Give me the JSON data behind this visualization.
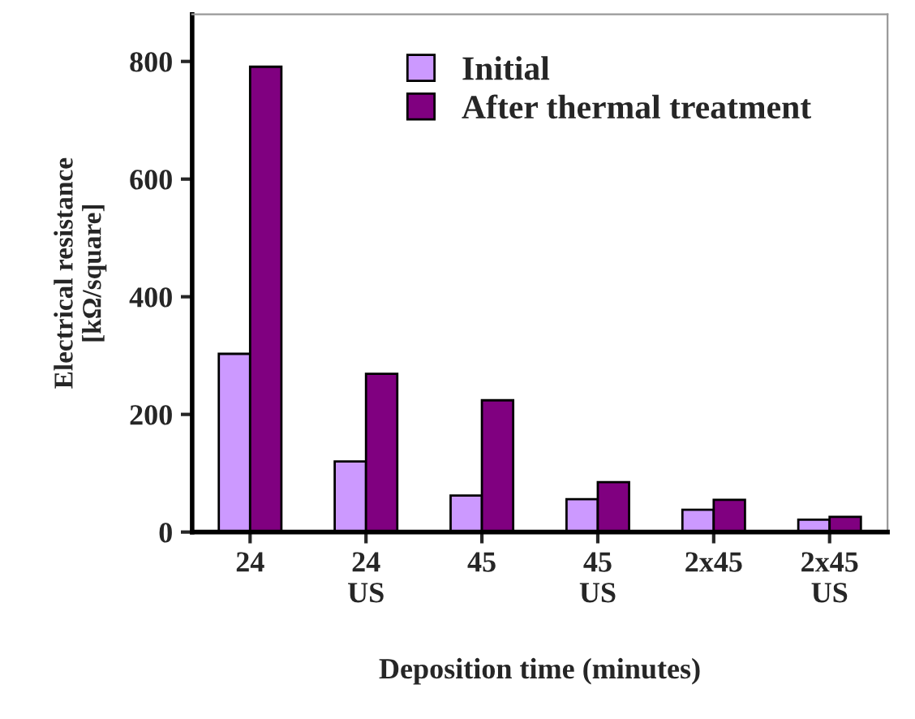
{
  "chart_data": {
    "type": "bar",
    "xlabel": "Deposition time (minutes)",
    "ylabel": "Electrical resistance\n[kΩ/square]",
    "categories": [
      "24",
      "24\nUS",
      "45",
      "45\nUS",
      "2x45",
      "2x45\nUS"
    ],
    "series": [
      {
        "name": "Initial",
        "color": "#cc99ff",
        "values": [
          303,
          120,
          62,
          56,
          38,
          21
        ]
      },
      {
        "name": "After thermal treatment",
        "color": "#800080",
        "values": [
          791,
          269,
          224,
          85,
          55,
          26
        ]
      }
    ],
    "ylim": [
      0,
      880
    ],
    "yticks": [
      0,
      200,
      400,
      600,
      800
    ],
    "grid": false,
    "legend": "top"
  }
}
